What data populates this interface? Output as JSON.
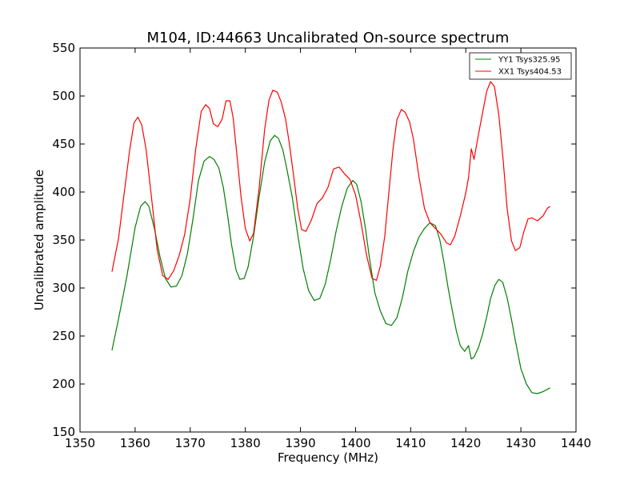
{
  "chart_data": {
    "type": "line",
    "title": "M104, ID:44663 Uncalibrated On-source spectrum",
    "xlabel": "Frequency (MHz)",
    "ylabel": "Uncalibrated amplitude",
    "xlim": [
      1350,
      1440
    ],
    "ylim": [
      150,
      550
    ],
    "xticks": [
      1350,
      1360,
      1370,
      1380,
      1390,
      1400,
      1410,
      1420,
      1430,
      1440
    ],
    "yticks": [
      150,
      200,
      250,
      300,
      350,
      400,
      450,
      500,
      550
    ],
    "grid": false,
    "legend_position": "top-right",
    "series": [
      {
        "name": "YY1 Tsys325.95",
        "color": "#008000",
        "x": [
          1355.8,
          1357.0,
          1358.5,
          1360.0,
          1361.0,
          1361.8,
          1362.5,
          1363.5,
          1364.5,
          1365.5,
          1366.5,
          1367.5,
          1368.5,
          1369.5,
          1370.5,
          1371.5,
          1372.5,
          1373.5,
          1374.3,
          1375.2,
          1376.0,
          1376.8,
          1377.5,
          1378.3,
          1379.0,
          1379.8,
          1380.5,
          1381.5,
          1382.5,
          1383.5,
          1384.5,
          1385.3,
          1386.0,
          1386.8,
          1387.5,
          1388.5,
          1389.5,
          1390.5,
          1391.5,
          1392.5,
          1393.5,
          1394.5,
          1395.5,
          1396.5,
          1397.5,
          1398.5,
          1399.5,
          1400.2,
          1401.0,
          1401.8,
          1402.5,
          1403.5,
          1404.5,
          1405.5,
          1406.5,
          1407.5,
          1408.5,
          1409.5,
          1410.5,
          1411.5,
          1412.5,
          1413.5,
          1414.5,
          1415.3,
          1416.0,
          1416.8,
          1417.5,
          1418.3,
          1419.0,
          1419.8,
          1420.5,
          1421.0,
          1421.5,
          1422.3,
          1423.0,
          1423.8,
          1424.5,
          1425.3,
          1426.0,
          1426.7,
          1427.5,
          1428.3,
          1429.0,
          1430.0,
          1431.0,
          1432.0,
          1433.0,
          1434.0,
          1435.3
        ],
        "values": [
          235,
          268,
          312,
          363,
          385,
          390,
          385,
          362,
          333,
          310,
          301,
          302,
          313,
          336,
          372,
          412,
          432,
          437,
          434,
          425,
          405,
          375,
          345,
          319,
          309,
          310,
          322,
          354,
          395,
          431,
          453,
          459,
          456,
          444,
          425,
          395,
          356,
          320,
          297,
          287,
          289,
          304,
          330,
          360,
          385,
          404,
          412,
          408,
          390,
          362,
          332,
          295,
          276,
          263,
          261,
          269,
          290,
          318,
          338,
          353,
          362,
          368,
          365,
          350,
          328,
          300,
          278,
          255,
          240,
          234,
          240,
          226,
          228,
          238,
          251,
          270,
          289,
          303,
          309,
          306,
          290,
          267,
          245,
          216,
          200,
          191,
          190,
          192,
          196
        ]
      },
      {
        "name": "XX1 Tsys404.53",
        "color": "#ff0000",
        "x": [
          1355.8,
          1357.0,
          1358.0,
          1359.0,
          1359.8,
          1360.5,
          1361.2,
          1362.0,
          1363.0,
          1364.0,
          1365.0,
          1366.0,
          1367.0,
          1368.0,
          1369.0,
          1370.0,
          1371.0,
          1372.0,
          1372.8,
          1373.5,
          1374.2,
          1375.0,
          1375.8,
          1376.5,
          1377.2,
          1377.8,
          1378.5,
          1379.2,
          1380.0,
          1380.8,
          1381.5,
          1382.5,
          1383.5,
          1384.3,
          1385.0,
          1385.8,
          1386.5,
          1387.3,
          1388.0,
          1388.8,
          1389.5,
          1390.2,
          1391.0,
          1392.0,
          1393.0,
          1394.0,
          1395.0,
          1396.0,
          1397.0,
          1398.0,
          1399.0,
          1400.0,
          1401.0,
          1402.0,
          1403.0,
          1403.8,
          1404.5,
          1405.3,
          1406.0,
          1406.8,
          1407.5,
          1408.3,
          1409.0,
          1409.8,
          1410.5,
          1411.5,
          1412.5,
          1413.5,
          1414.5,
          1415.5,
          1416.5,
          1417.2,
          1418.0,
          1419.0,
          1420.0,
          1420.5,
          1421.0,
          1421.5,
          1422.3,
          1423.0,
          1423.8,
          1424.5,
          1425.2,
          1426.0,
          1426.8,
          1427.5,
          1428.3,
          1429.0,
          1429.8,
          1430.5,
          1431.3,
          1432.0,
          1433.0,
          1434.0,
          1434.8,
          1435.3
        ],
        "values": [
          317,
          352,
          398,
          443,
          472,
          478,
          470,
          444,
          393,
          340,
          313,
          309,
          318,
          334,
          356,
          393,
          445,
          484,
          491,
          487,
          471,
          468,
          476,
          495,
          495,
          477,
          437,
          396,
          362,
          349,
          357,
          404,
          465,
          496,
          506,
          504,
          494,
          476,
          450,
          415,
          383,
          361,
          359,
          371,
          388,
          394,
          405,
          424,
          426,
          419,
          413,
          397,
          368,
          334,
          310,
          308,
          323,
          354,
          397,
          445,
          475,
          486,
          483,
          473,
          455,
          416,
          383,
          368,
          362,
          356,
          347,
          345,
          354,
          375,
          399,
          415,
          445,
          434,
          460,
          481,
          505,
          515,
          510,
          480,
          432,
          383,
          349,
          339,
          342,
          358,
          372,
          373,
          370,
          375,
          383,
          385
        ]
      }
    ]
  }
}
